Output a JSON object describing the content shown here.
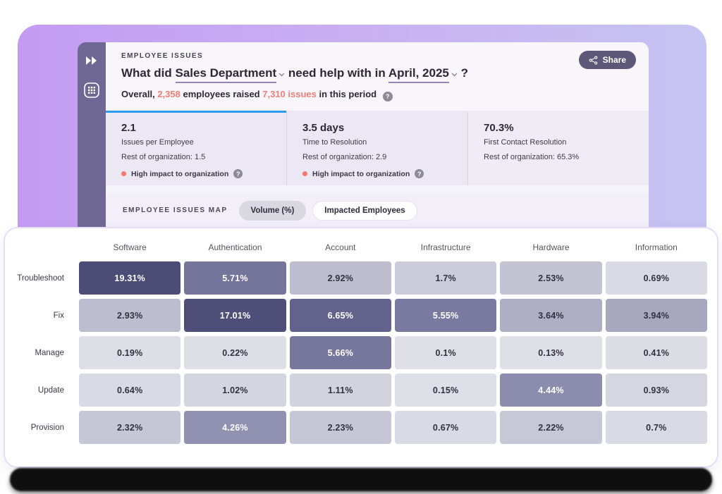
{
  "app": {
    "share_label": "Share"
  },
  "icons": {
    "help": "?"
  },
  "header": {
    "category_label": "EMPLOYEE ISSUES",
    "title": {
      "prefix": "What did",
      "department": "Sales Department",
      "middle": "need help with in",
      "period": "April, 2025",
      "suffix": "?"
    },
    "subtitle": {
      "pre": "Overall,",
      "employees_count": "2,358",
      "mid": "employees raised",
      "issues_count": "7,310 issues",
      "post": "in this period"
    }
  },
  "stats": [
    {
      "value": "2.1",
      "label": "Issues per Employee",
      "comparison": "Rest of organization: 1.5",
      "impact_note": "High impact to organization",
      "active": true
    },
    {
      "value": "3.5 days",
      "label": "Time to Resolution",
      "comparison": "Rest of organization: 2.9",
      "impact_note": "High impact to organization",
      "active": false
    },
    {
      "value": "70.3%",
      "label": "First Contact Resolution",
      "comparison": "Rest of organization: 65.3%",
      "impact_note": null,
      "active": false
    }
  ],
  "map_bar": {
    "label": "EMPLOYEE ISSUES MAP",
    "toggles": [
      {
        "label": "Volume (%)",
        "selected": true
      },
      {
        "label": "Impacted Employees",
        "selected": false
      }
    ]
  },
  "chart_data": {
    "type": "heatmap",
    "title": "Employee Issues Map — Volume (%)",
    "columns": [
      "Software",
      "Authentication",
      "Account",
      "Infrastructure",
      "Hardware",
      "Information"
    ],
    "rows": [
      "Troubleshoot",
      "Fix",
      "Manage",
      "Update",
      "Provision"
    ],
    "values": [
      [
        19.31,
        5.71,
        2.92,
        1.7,
        2.53,
        0.69
      ],
      [
        2.93,
        17.01,
        6.65,
        5.55,
        3.64,
        3.94
      ],
      [
        0.19,
        0.22,
        5.66,
        0.1,
        0.13,
        0.41
      ],
      [
        0.64,
        1.02,
        1.11,
        0.15,
        4.44,
        0.93
      ],
      [
        2.32,
        4.26,
        2.23,
        0.67,
        2.22,
        0.7
      ]
    ],
    "cell_labels": [
      [
        "19.31%",
        "5.71%",
        "2.92%",
        "1.7%",
        "2.53%",
        "0.69%"
      ],
      [
        "2.93%",
        "17.01%",
        "6.65%",
        "5.55%",
        "3.64%",
        "3.94%"
      ],
      [
        "0.19%",
        "0.22%",
        "5.66%",
        "0.1%",
        "0.13%",
        "0.41%"
      ],
      [
        "0.64%",
        "1.02%",
        "1.11%",
        "0.15%",
        "4.44%",
        "0.93%"
      ],
      [
        "2.32%",
        "4.26%",
        "2.23%",
        "0.67%",
        "2.22%",
        "0.7%"
      ]
    ],
    "unit": "%",
    "legend": "none",
    "color_low": "#e0e0e8",
    "color_high": "#4a4a75"
  },
  "colors": {
    "accent_red": "#f27d74",
    "active_tab_blue": "#2d9bf0",
    "sidebar_purple": "#6f6894",
    "share_button_bg": "#5d5778",
    "backdrop_gradient_left": "#c39bf2",
    "backdrop_gradient_right": "#c6c4f2"
  }
}
